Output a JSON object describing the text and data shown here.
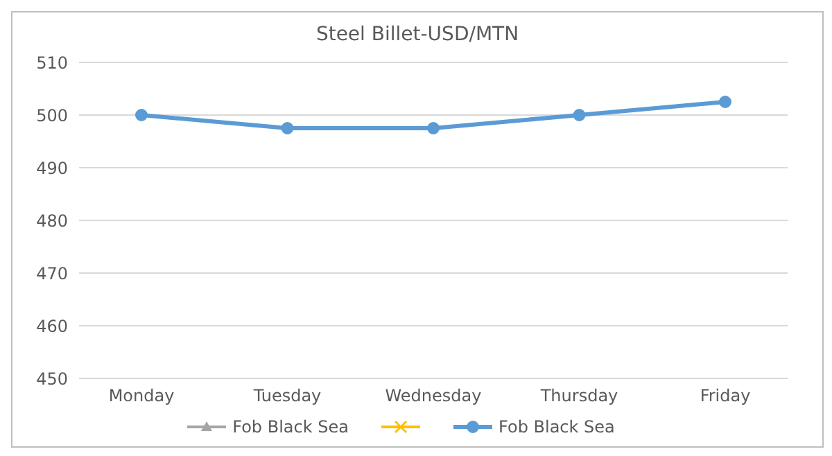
{
  "chart_data": {
    "type": "line",
    "title": "Steel Billet-USD/MTN",
    "categories": [
      "Monday",
      "Tuesday",
      "Wednesday",
      "Thursday",
      "Friday"
    ],
    "series": [
      {
        "name": "Fob Black Sea",
        "color": "#a5a5a5",
        "marker": "triangle",
        "values": [
          null,
          null,
          null,
          null,
          null
        ]
      },
      {
        "color": "#ffc000",
        "marker": "cross",
        "values": [
          null,
          null,
          null,
          null,
          null
        ]
      },
      {
        "name": "Fob Black Sea",
        "color": "#5b9bd5",
        "marker": "circle",
        "values": [
          500,
          497.5,
          497.5,
          500,
          502.5
        ]
      }
    ],
    "ylim": [
      450,
      510
    ],
    "yticks": [
      450,
      460,
      470,
      480,
      490,
      500,
      510
    ],
    "grid": "y",
    "legend": "bottom"
  }
}
